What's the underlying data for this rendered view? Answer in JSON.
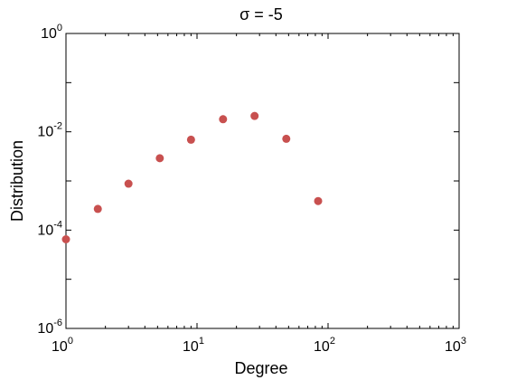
{
  "chart_data": {
    "type": "scatter",
    "title": "σ = -5",
    "xlabel": "Degree",
    "ylabel": "Distribution",
    "xscale": "log",
    "yscale": "log",
    "xlim": [
      1,
      1000
    ],
    "ylim": [
      1e-06,
      1
    ],
    "x_ticks": [
      {
        "base": "10",
        "exp": "0",
        "value": 1
      },
      {
        "base": "10",
        "exp": "1",
        "value": 10
      },
      {
        "base": "10",
        "exp": "2",
        "value": 100
      },
      {
        "base": "10",
        "exp": "3",
        "value": 1000
      }
    ],
    "y_ticks": [
      {
        "base": "10",
        "exp": "-6",
        "value": 1e-06
      },
      {
        "base": "10",
        "exp": "-4",
        "value": 0.0001
      },
      {
        "base": "10",
        "exp": "-2",
        "value": 0.01
      },
      {
        "base": "10",
        "exp": "0",
        "value": 1
      }
    ],
    "grid": false,
    "marker_color": "#c8504f",
    "x": [
      1.0,
      1.75,
      3.0,
      5.2,
      9.0,
      15.8,
      27.5,
      48.0,
      84.0
    ],
    "y": [
      6.5e-05,
      0.00027,
      0.00088,
      0.0029,
      0.0069,
      0.018,
      0.021,
      0.0072,
      0.00039
    ]
  }
}
